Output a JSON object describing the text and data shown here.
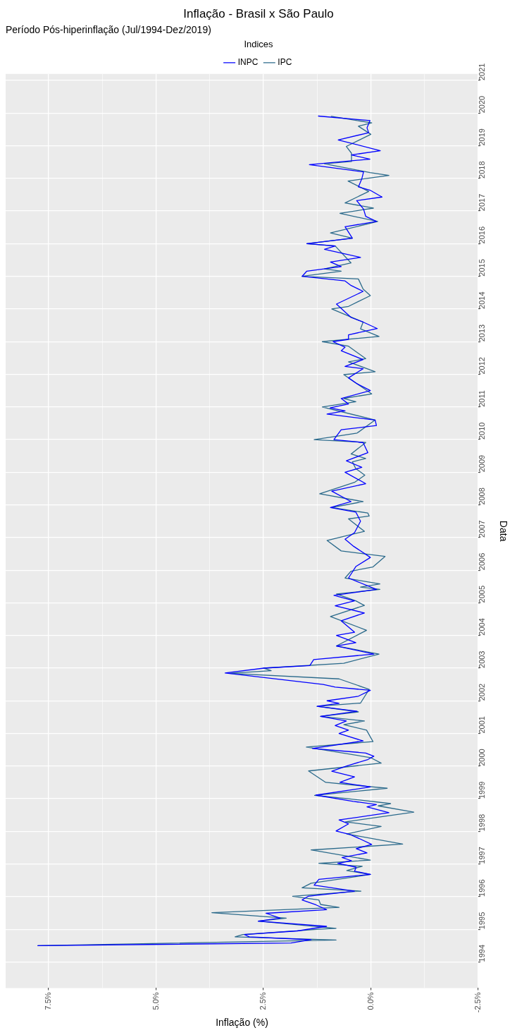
{
  "chart_data": {
    "type": "line",
    "title": "Inflação - Brasil x São Paulo",
    "subtitle": "Período Pós-hiperinflação (Jul/1994-Dez/2019)",
    "orientation": "horizontal",
    "xlabel": "Inflação (%)",
    "ylabel": "Data",
    "legend_title": "Índices",
    "legend": "top",
    "grid": true,
    "marker": "none",
    "line_style": "solid",
    "ylim": [
      1993.2,
      2021.2
    ],
    "yticks": [
      1994,
      1995,
      1996,
      1997,
      1998,
      1999,
      2000,
      2001,
      2002,
      2003,
      2004,
      2005,
      2006,
      2007,
      2008,
      2009,
      2010,
      2011,
      2012,
      2013,
      2014,
      2015,
      2016,
      2017,
      2018,
      2019,
      2020,
      2021
    ],
    "xlim": [
      8.5,
      -2.5
    ],
    "xticks": [
      {
        "value": -2.5,
        "label": "-2.5%"
      },
      {
        "value": -1.25,
        "label": null
      },
      {
        "value": 0,
        "label": "0.0%"
      },
      {
        "value": 1.25,
        "label": null
      },
      {
        "value": 2.5,
        "label": "2.5%"
      },
      {
        "value": 3.75,
        "label": null
      },
      {
        "value": 5,
        "label": "5.0%"
      },
      {
        "value": 6.25,
        "label": null
      },
      {
        "value": 7.5,
        "label": "7.5%"
      }
    ],
    "series": [
      {
        "name": "INPC",
        "color": "#0000ff",
        "x": [
          1994.5,
          1994.58,
          1994.68,
          1994.77,
          1994.84,
          1994.95,
          1995.09,
          1995.25,
          1995.34,
          1995.49,
          1995.6,
          1995.75,
          1995.9,
          1996.01,
          1996.17,
          1996.35,
          1996.53,
          1996.68,
          1996.78,
          1996.9,
          1997.02,
          1997.1,
          1997.2,
          1997.34,
          1997.47,
          1997.6,
          1997.78,
          1997.9,
          1998.01,
          1998.23,
          1998.35,
          1998.57,
          1998.75,
          1998.82,
          1998.92,
          1999.11,
          1999.36,
          1999.5,
          1999.67,
          1999.84,
          2000.0,
          2000.2,
          2000.3,
          2000.4,
          2000.54,
          2000.77,
          2001.0,
          2001.1,
          2001.24,
          2001.38,
          2001.52,
          2001.68,
          2001.83,
          2001.92,
          2002.0,
          2002.14,
          2002.32,
          2002.42,
          2002.5,
          2002.85,
          2003.0,
          2003.08,
          2003.26,
          2003.43,
          2003.68,
          2003.78,
          2004.0,
          2004.1,
          2004.45,
          2004.69,
          2004.91,
          2005.06,
          2005.23,
          2005.41,
          2005.76,
          2006.11,
          2006.39,
          2006.73,
          2006.95,
          2007.15,
          2007.5,
          2007.78,
          2007.92,
          2008.1,
          2008.42,
          2008.65,
          2009.0,
          2009.15,
          2009.35,
          2009.6,
          2009.91,
          2010.0,
          2010.3,
          2010.43,
          2010.6,
          2010.78,
          2010.88,
          2010.97,
          2011.09,
          2011.26,
          2011.5,
          2011.71,
          2011.89,
          2012.17,
          2012.24,
          2012.45,
          2012.72,
          2012.83,
          2013.0,
          2013.07,
          2013.21,
          2013.4,
          2013.6,
          2013.74,
          2014.15,
          2014.54,
          2014.72,
          2014.86,
          2015.0,
          2015.16,
          2015.3,
          2015.44,
          2015.58,
          2015.83,
          2015.93,
          2016.0,
          2016.17,
          2016.52,
          2016.68,
          2016.84,
          2017.06,
          2017.32,
          2017.43,
          2017.64,
          2017.74,
          2017.99,
          2018.2,
          2018.42,
          2018.59,
          2018.72,
          2018.85,
          2019.18,
          2019.4,
          2019.55,
          2019.77,
          2019.91
        ],
        "values": [
          7.75,
          1.86,
          1.39,
          2.83,
          2.94,
          1.71,
          1.03,
          2.62,
          2.11,
          2.44,
          1.03,
          1.28,
          1.6,
          1.46,
          0.38,
          1.32,
          1.21,
          0.01,
          0.38,
          0.34,
          0.77,
          0.45,
          0.67,
          0.09,
          0.34,
          -0.02,
          0.27,
          0.48,
          0.81,
          0.52,
          0.74,
          -0.42,
          0.09,
          -0.13,
          0.41,
          1.28,
          0.01,
          0.72,
          0.38,
          0.91,
          0.57,
          0.07,
          -0.07,
          0.12,
          1.36,
          0.18,
          0.74,
          0.52,
          0.83,
          0.57,
          1.17,
          0.32,
          1.25,
          0.74,
          1.02,
          0.29,
          0.01,
          0.83,
          1.11,
          3.39,
          2.49,
          1.42,
          1.33,
          -0.07,
          0.8,
          0.35,
          0.8,
          0.38,
          0.69,
          0.15,
          0.83,
          0.38,
          0.86,
          -0.13,
          0.52,
          0.35,
          0.01,
          0.4,
          0.6,
          0.38,
          0.24,
          0.35,
          0.94,
          0.46,
          0.91,
          0.12,
          0.6,
          0.21,
          0.57,
          0.07,
          0.18,
          0.86,
          0.69,
          -0.13,
          -0.1,
          1.02,
          0.6,
          0.95,
          0.52,
          0.69,
          0.01,
          0.32,
          0.52,
          0.18,
          0.6,
          0.18,
          0.69,
          0.6,
          0.88,
          0.52,
          0.52,
          -0.15,
          0.18,
          0.46,
          0.8,
          0.18,
          0.46,
          0.6,
          1.6,
          1.49,
          0.69,
          0.94,
          0.24,
          1.08,
          0.83,
          1.49,
          0.43,
          0.6,
          -0.13,
          0.12,
          0.17,
          0.33,
          -0.26,
          0.02,
          0.29,
          0.21,
          0.17,
          1.43,
          0.02,
          0.45,
          -0.22,
          0.76,
          0.05,
          0.09,
          0.02,
          1.22
        ]
      },
      {
        "name": "IPC",
        "color": "#2b6a8b",
        "x": [
          1994.5,
          1994.67,
          1994.77,
          1994.84,
          1995.0,
          1995.03,
          1995.25,
          1995.34,
          1995.51,
          1995.67,
          1995.76,
          1995.9,
          1996.01,
          1996.17,
          1996.27,
          1996.41,
          1996.68,
          1996.8,
          1996.93,
          1997.02,
          1997.12,
          1997.43,
          1997.61,
          1997.92,
          1998.15,
          1998.29,
          1998.59,
          1998.78,
          1998.85,
          1999.0,
          1999.1,
          1999.32,
          1999.5,
          1999.85,
          2000.09,
          2000.26,
          2000.58,
          2000.75,
          2001.1,
          2001.27,
          2001.38,
          2001.52,
          2001.66,
          2001.83,
          2001.93,
          2002.35,
          2002.67,
          2002.84,
          2002.92,
          2003.0,
          2003.15,
          2003.43,
          2003.68,
          2004.16,
          2004.58,
          2004.92,
          2005.06,
          2005.27,
          2005.41,
          2005.48,
          2005.58,
          2005.76,
          2005.97,
          2006.1,
          2006.42,
          2006.59,
          2006.91,
          2007.19,
          2007.57,
          2007.66,
          2007.75,
          2007.92,
          2008.1,
          2008.34,
          2008.69,
          2008.91,
          2009.11,
          2009.32,
          2009.42,
          2009.56,
          2009.91,
          2010.0,
          2010.1,
          2010.2,
          2010.6,
          2011.0,
          2011.16,
          2011.26,
          2011.4,
          2011.68,
          2011.99,
          2012.08,
          2012.38,
          2012.48,
          2012.86,
          2013.0,
          2013.16,
          2013.39,
          2013.6,
          2014.0,
          2014.08,
          2014.41,
          2014.61,
          2014.92,
          2015.0,
          2015.16,
          2015.23,
          2015.41,
          2015.93,
          2016.0,
          2016.17,
          2016.33,
          2016.68,
          2016.93,
          2017.09,
          2017.25,
          2017.6,
          2017.92,
          2018.09,
          2018.18,
          2018.45,
          2018.52,
          2018.77,
          2018.98,
          2019.35,
          2019.6,
          2019.7,
          2019.9
        ],
        "values": [
          7.75,
          0.81,
          3.16,
          2.98,
          1.21,
          0.81,
          2.62,
          1.97,
          3.7,
          0.74,
          1.17,
          1.21,
          1.82,
          0.23,
          1.6,
          1.39,
          0.01,
          0.56,
          0.2,
          1.21,
          0.01,
          1.39,
          -0.74,
          0.56,
          -0.24,
          0.59,
          -1.0,
          -0.17,
          -0.46,
          0.52,
          1.31,
          -0.38,
          1.05,
          1.45,
          -0.24,
          0.01,
          1.5,
          -0.05,
          0.1,
          0.63,
          0.15,
          1.17,
          0.29,
          1.25,
          0.24,
          0.04,
          0.74,
          3.3,
          2.32,
          2.5,
          0.63,
          -0.19,
          0.8,
          0.1,
          0.94,
          0.15,
          0.35,
          0.8,
          -0.21,
          0.24,
          -0.21,
          0.6,
          0.46,
          -0.05,
          -0.33,
          0.69,
          1.02,
          0.15,
          0.52,
          0.04,
          0.07,
          0.91,
          0.18,
          1.19,
          0.38,
          0.14,
          0.35,
          0.43,
          0.12,
          0.46,
          0.12,
          1.32,
          0.8,
          0.32,
          -0.1,
          1.13,
          0.35,
          0.63,
          -0.02,
          0.29,
          0.63,
          -0.1,
          0.52,
          0.12,
          0.52,
          1.13,
          -0.19,
          0.24,
          0.18,
          0.91,
          0.52,
          0.01,
          0.18,
          0.29,
          1.6,
          0.69,
          1.08,
          0.46,
          0.83,
          1.49,
          0.43,
          0.94,
          -0.16,
          0.72,
          -0.06,
          0.6,
          0.05,
          0.53,
          -0.42,
          0.02,
          1.08,
          0.45,
          0.45,
          0.57,
          0.0,
          0.29,
          -0.02,
          0.92
        ]
      }
    ]
  }
}
